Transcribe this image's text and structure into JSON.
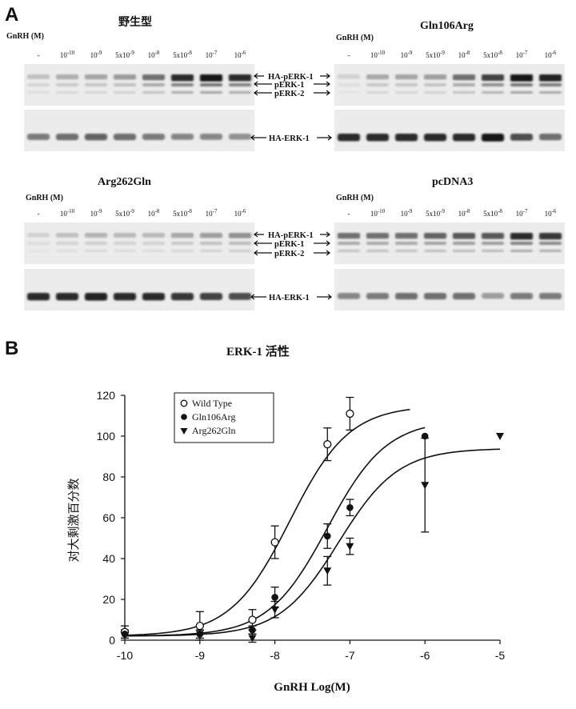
{
  "panel_a": {
    "label": "A",
    "gnrh_label": "GnRH (M)",
    "lanes": [
      "-",
      "10-10",
      "10-9",
      "5x10-9",
      "10-8",
      "5x10-8",
      "10-7",
      "10-6"
    ],
    "band_labels": {
      "ha_perk1": "HA-pERK-1",
      "perk1": "pERK-1",
      "perk2": "pERK-2",
      "ha_erk1": "HA-ERK-1"
    },
    "blots": [
      {
        "title": "野生型",
        "perk_intensity": [
          0.2,
          0.28,
          0.32,
          0.36,
          0.55,
          0.85,
          0.95,
          0.85
        ],
        "erk_intensity": [
          0.5,
          0.55,
          0.6,
          0.55,
          0.5,
          0.45,
          0.45,
          0.4
        ]
      },
      {
        "title": "Gln106Arg",
        "perk_intensity": [
          0.12,
          0.3,
          0.32,
          0.34,
          0.55,
          0.75,
          0.95,
          0.9
        ],
        "erk_intensity": [
          0.85,
          0.85,
          0.85,
          0.85,
          0.85,
          0.95,
          0.7,
          0.55
        ]
      },
      {
        "title": "Arg262Gln",
        "perk_intensity": [
          0.12,
          0.2,
          0.25,
          0.22,
          0.22,
          0.3,
          0.35,
          0.4
        ],
        "erk_intensity": [
          0.85,
          0.85,
          0.9,
          0.85,
          0.85,
          0.8,
          0.75,
          0.7
        ]
      },
      {
        "title": "pcDNA3",
        "perk_intensity": [
          0.55,
          0.55,
          0.55,
          0.6,
          0.65,
          0.65,
          0.85,
          0.8
        ],
        "erk_intensity": [
          0.45,
          0.5,
          0.55,
          0.55,
          0.55,
          0.35,
          0.5,
          0.5
        ]
      }
    ]
  },
  "panel_b": {
    "label": "B"
  },
  "chart_data": {
    "type": "scatter",
    "title": "ERK-1 活性",
    "xlabel": "GnRH Log(M)",
    "ylabel": "对大剩激百分数",
    "xlim": [
      -10,
      -5
    ],
    "ylim": [
      0,
      120
    ],
    "xticks": [
      -10,
      -9,
      -8,
      -7,
      -6,
      -5
    ],
    "yticks": [
      0,
      20,
      40,
      60,
      80,
      100,
      120
    ],
    "legend_position": "top-left",
    "series": [
      {
        "name": "Wild Type",
        "marker": "open-circle",
        "x": [
          -10,
          -9,
          -8.3,
          -8,
          -7.3,
          -7
        ],
        "y": [
          4,
          7,
          10,
          48,
          96,
          111
        ],
        "err": [
          3,
          7,
          5,
          8,
          8,
          8
        ],
        "fit": {
          "bottom": 2,
          "top": 115,
          "logEC50": -7.8,
          "hill": 1.1
        }
      },
      {
        "name": "Gln106Arg",
        "marker": "filled-circle",
        "x": [
          -10,
          -9,
          -8.3,
          -8,
          -7.3,
          -7,
          -6
        ],
        "y": [
          3,
          3,
          5,
          21,
          51,
          65,
          100
        ],
        "err": [
          2,
          2,
          2,
          5,
          6,
          4,
          0
        ],
        "fit": {
          "bottom": 2,
          "top": 108,
          "logEC50": -7.3,
          "hill": 1.1
        }
      },
      {
        "name": "Arg262Gln",
        "marker": "filled-triangle-down",
        "x": [
          -9,
          -8.3,
          -8,
          -7.3,
          -7,
          -6,
          -5
        ],
        "y": [
          3,
          1,
          15,
          34,
          46,
          76,
          100
        ],
        "err": [
          2,
          2,
          4,
          7,
          4,
          23,
          0
        ],
        "fit": {
          "bottom": 2,
          "top": 94,
          "logEC50": -7.15,
          "hill": 1.1
        }
      }
    ]
  }
}
